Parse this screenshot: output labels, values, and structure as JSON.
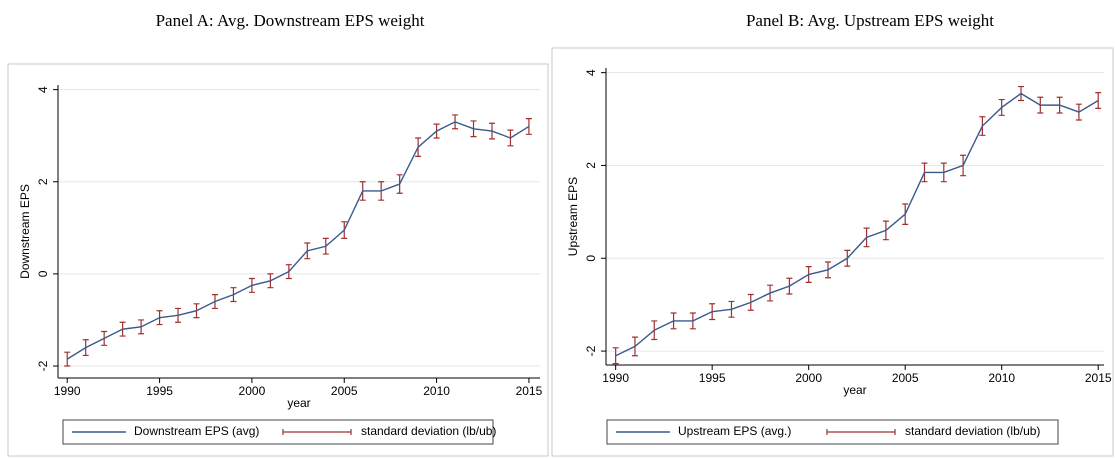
{
  "chart_data": [
    {
      "type": "line",
      "title": "Panel A: Avg. Downstream EPS weight",
      "ylabel": "Downstream EPS",
      "xlabel": "year",
      "x": [
        1990,
        1991,
        1992,
        1993,
        1994,
        1995,
        1996,
        1997,
        1998,
        1999,
        2000,
        2001,
        2002,
        2003,
        2004,
        2005,
        2006,
        2007,
        2008,
        2009,
        2010,
        2011,
        2012,
        2013,
        2014,
        2015
      ],
      "series": [
        {
          "name": "Downstream EPS (avg)",
          "color": "#3a5a8c",
          "values": [
            -1.85,
            -1.6,
            -1.4,
            -1.2,
            -1.15,
            -0.95,
            -0.9,
            -0.8,
            -0.6,
            -0.45,
            -0.25,
            -0.15,
            0.05,
            0.5,
            0.6,
            0.95,
            1.8,
            1.8,
            1.95,
            2.75,
            3.1,
            3.3,
            3.15,
            3.1,
            2.95,
            3.2
          ],
          "errors": [
            0.15,
            0.17,
            0.15,
            0.15,
            0.15,
            0.15,
            0.15,
            0.15,
            0.15,
            0.15,
            0.15,
            0.15,
            0.15,
            0.17,
            0.17,
            0.18,
            0.2,
            0.2,
            0.2,
            0.2,
            0.15,
            0.15,
            0.17,
            0.17,
            0.17,
            0.17
          ],
          "error_name": "standard deviation (lb/ub)",
          "error_color": "#a03030"
        }
      ],
      "xlim": [
        1989.5,
        2015.6
      ],
      "xticks": [
        1990,
        1995,
        2000,
        2005,
        2010,
        2015
      ],
      "ylim": [
        -2.26,
        4.1
      ],
      "yticks": [
        -2,
        0,
        2,
        4
      ],
      "grid": true,
      "legend": "bottom"
    },
    {
      "type": "line",
      "title": "Panel B: Avg. Upstream EPS weight",
      "ylabel": "Upstream EPS",
      "xlabel": "year",
      "x": [
        1990,
        1991,
        1992,
        1993,
        1994,
        1995,
        1996,
        1997,
        1998,
        1999,
        2000,
        2001,
        2002,
        2003,
        2004,
        2005,
        2006,
        2007,
        2008,
        2009,
        2010,
        2011,
        2012,
        2013,
        2014,
        2015
      ],
      "series": [
        {
          "name": "Upstream EPS (avg.)",
          "color": "#3a5a8c",
          "values": [
            -2.1,
            -1.9,
            -1.55,
            -1.35,
            -1.35,
            -1.15,
            -1.1,
            -0.95,
            -0.75,
            -0.6,
            -0.35,
            -0.25,
            0,
            0.45,
            0.6,
            0.95,
            1.85,
            1.85,
            2.0,
            2.85,
            3.25,
            3.55,
            3.3,
            3.3,
            3.15,
            3.4
          ],
          "errors": [
            0.17,
            0.2,
            0.2,
            0.17,
            0.17,
            0.17,
            0.17,
            0.17,
            0.17,
            0.17,
            0.17,
            0.17,
            0.17,
            0.2,
            0.2,
            0.22,
            0.2,
            0.2,
            0.22,
            0.2,
            0.17,
            0.15,
            0.17,
            0.17,
            0.17,
            0.17
          ],
          "error_name": "standard deviation (lb/ub)",
          "error_color": "#a03030"
        }
      ],
      "xlim": [
        1989.5,
        2015.3
      ],
      "xticks": [
        1990,
        1995,
        2000,
        2005,
        2010,
        2015
      ],
      "ylim": [
        -2.3,
        4.1
      ],
      "yticks": [
        -2,
        0,
        2,
        4
      ],
      "grid": true,
      "legend": "bottom"
    }
  ]
}
